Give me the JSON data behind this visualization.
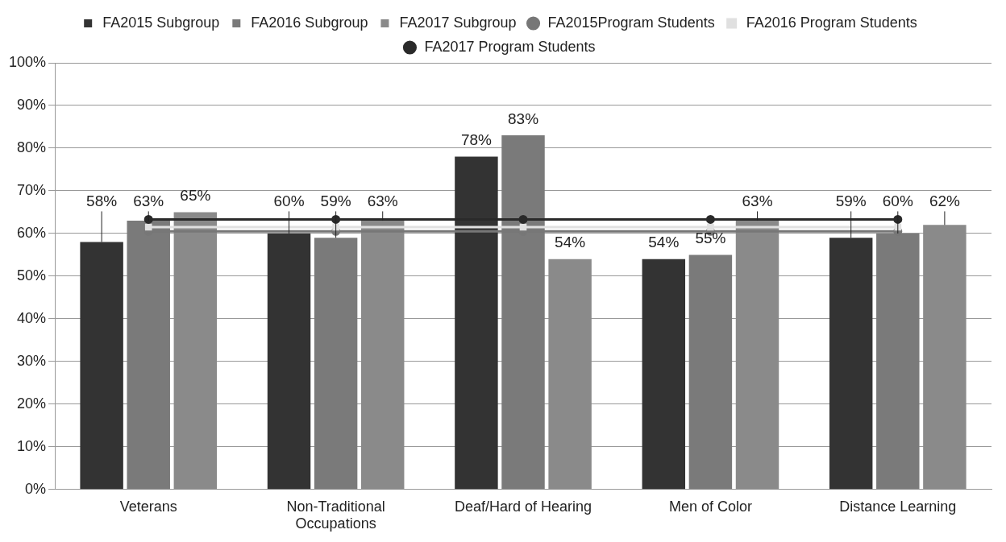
{
  "chart_data": {
    "type": "bar",
    "categories": [
      "Veterans",
      "Non-Traditional Occupations",
      "Deaf/Hard of Hearing",
      "Men of Color",
      "Distance Learning"
    ],
    "series": [
      {
        "name": "FA2015 Subgroup",
        "color": "#333333",
        "values": [
          58,
          60,
          78,
          54,
          59
        ],
        "value_labels": [
          "58%",
          "60%",
          "78%",
          "54%",
          "59%"
        ]
      },
      {
        "name": "FA2016 Subgroup",
        "color": "#7a7a7a",
        "values": [
          63,
          59,
          83,
          55,
          60
        ],
        "value_labels": [
          "63%",
          "59%",
          "83%",
          "55%",
          "60%"
        ]
      },
      {
        "name": "FA2017 Subgroup",
        "color": "#8a8a8a",
        "values": [
          65,
          63,
          54,
          63,
          62
        ],
        "value_labels": [
          "65%",
          "63%",
          "54%",
          "63%",
          "62%"
        ]
      },
      {
        "name": "FA2015Program Students",
        "type": "line",
        "color": "#777777",
        "marker": "circle",
        "values": [
          60.5,
          60.5,
          60.5,
          60.5,
          60.5
        ]
      },
      {
        "name": "FA2016 Program Students",
        "type": "line",
        "color": "#e0e0e0",
        "marker": "square",
        "values": [
          61.5,
          61.5,
          61.5,
          61.5,
          61.5
        ]
      },
      {
        "name": "FA2017 Program Students",
        "type": "line",
        "color": "#2a2a2a",
        "marker": "circle",
        "values": [
          63.3,
          63.3,
          63.3,
          63.3,
          63.3
        ]
      }
    ],
    "ylim": [
      0,
      100
    ],
    "yticks": [
      {
        "value": 0,
        "label": "0%"
      },
      {
        "value": 10,
        "label": "10%"
      },
      {
        "value": 20,
        "label": "20%"
      },
      {
        "value": 30,
        "label": "30%"
      },
      {
        "value": 40,
        "label": "40%"
      },
      {
        "value": 50,
        "label": "50%"
      },
      {
        "value": 60,
        "label": "60%"
      },
      {
        "value": 70,
        "label": "70%"
      },
      {
        "value": 80,
        "label": "80%"
      },
      {
        "value": 90,
        "label": "90%"
      },
      {
        "value": 100,
        "label": "100%"
      }
    ],
    "grid": "y",
    "legend": "top"
  }
}
